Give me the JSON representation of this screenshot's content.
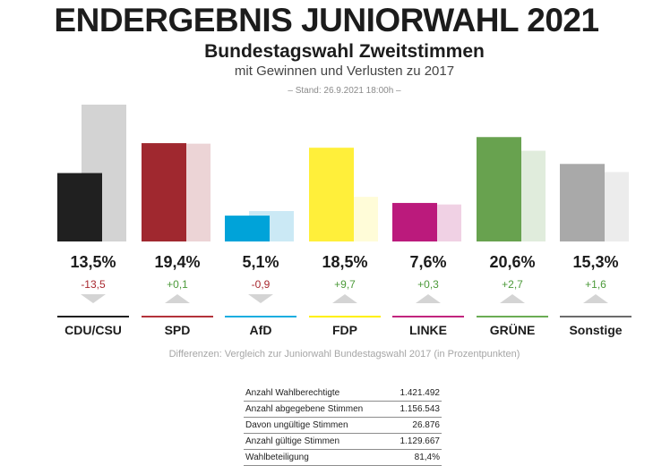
{
  "header": {
    "title": "ENDERGEBNIS JUNIORWAHL 2021",
    "subtitle": "Bundestagswahl Zweitstimmen",
    "subtitle2": "mit Gewinnen und Verlusten zu 2017",
    "stand": "– Stand: 26.9.2021 18:00h –"
  },
  "chart_data": {
    "type": "bar",
    "title": "Bundestagswahl Zweitstimmen",
    "categories": [
      "CDU/CSU",
      "SPD",
      "AfD",
      "FDP",
      "LINKE",
      "GRÜNE",
      "Sonstige"
    ],
    "series": [
      {
        "name": "2021",
        "values": [
          13.5,
          19.4,
          5.1,
          18.5,
          7.6,
          20.6,
          15.3
        ]
      },
      {
        "name": "2017",
        "values": [
          27.0,
          19.3,
          6.0,
          8.8,
          7.3,
          17.9,
          13.7
        ]
      }
    ],
    "value_labels": [
      "13,5%",
      "19,4%",
      "5,1%",
      "18,5%",
      "7,6%",
      "20,6%",
      "15,3%"
    ],
    "diff_labels": [
      "-13,5",
      "+0,1",
      "-0,9",
      "+9,7",
      "+0,3",
      "+2,7",
      "+1,6"
    ],
    "diffs": [
      -13.5,
      0.1,
      -0.9,
      9.7,
      0.3,
      2.7,
      1.6
    ],
    "colors": [
      "#202020",
      "#a0282f",
      "#00a3d9",
      "#ffef3a",
      "#bb1a7c",
      "#68a24f",
      "#a9a9a9"
    ],
    "colors_2017": [
      "#d3d3d3",
      "#ecd4d6",
      "#cbe9f5",
      "#fffcd8",
      "#f0d1e4",
      "#e0ecdc",
      "#ececec"
    ],
    "underline_colors": [
      "#202020",
      "#b3323a",
      "#1aaee0",
      "#fff000",
      "#c2247e",
      "#6aac54",
      "#6b6b6b"
    ],
    "diff_colors": {
      "positive": "#4c9a3a",
      "negative": "#a8282f"
    },
    "xlabel": "",
    "ylabel": "",
    "ylim": [
      0,
      27.5
    ],
    "grid": false,
    "legend": "none"
  },
  "footnote": "Differenzen: Vergleich zur Juniorwahl Bundestagswahl 2017 (in Prozentpunkten)",
  "stats": [
    {
      "label": "Anzahl Wahlberechtigte",
      "value": "1.421.492"
    },
    {
      "label": "Anzahl abgegebene Stimmen",
      "value": "1.156.543"
    },
    {
      "label": "Davon ungültige Stimmen",
      "value": "26.876"
    },
    {
      "label": "Anzahl gültige Stimmen",
      "value": "1.129.667"
    },
    {
      "label": "Wahlbeteiligung",
      "value": "81,4%"
    }
  ]
}
